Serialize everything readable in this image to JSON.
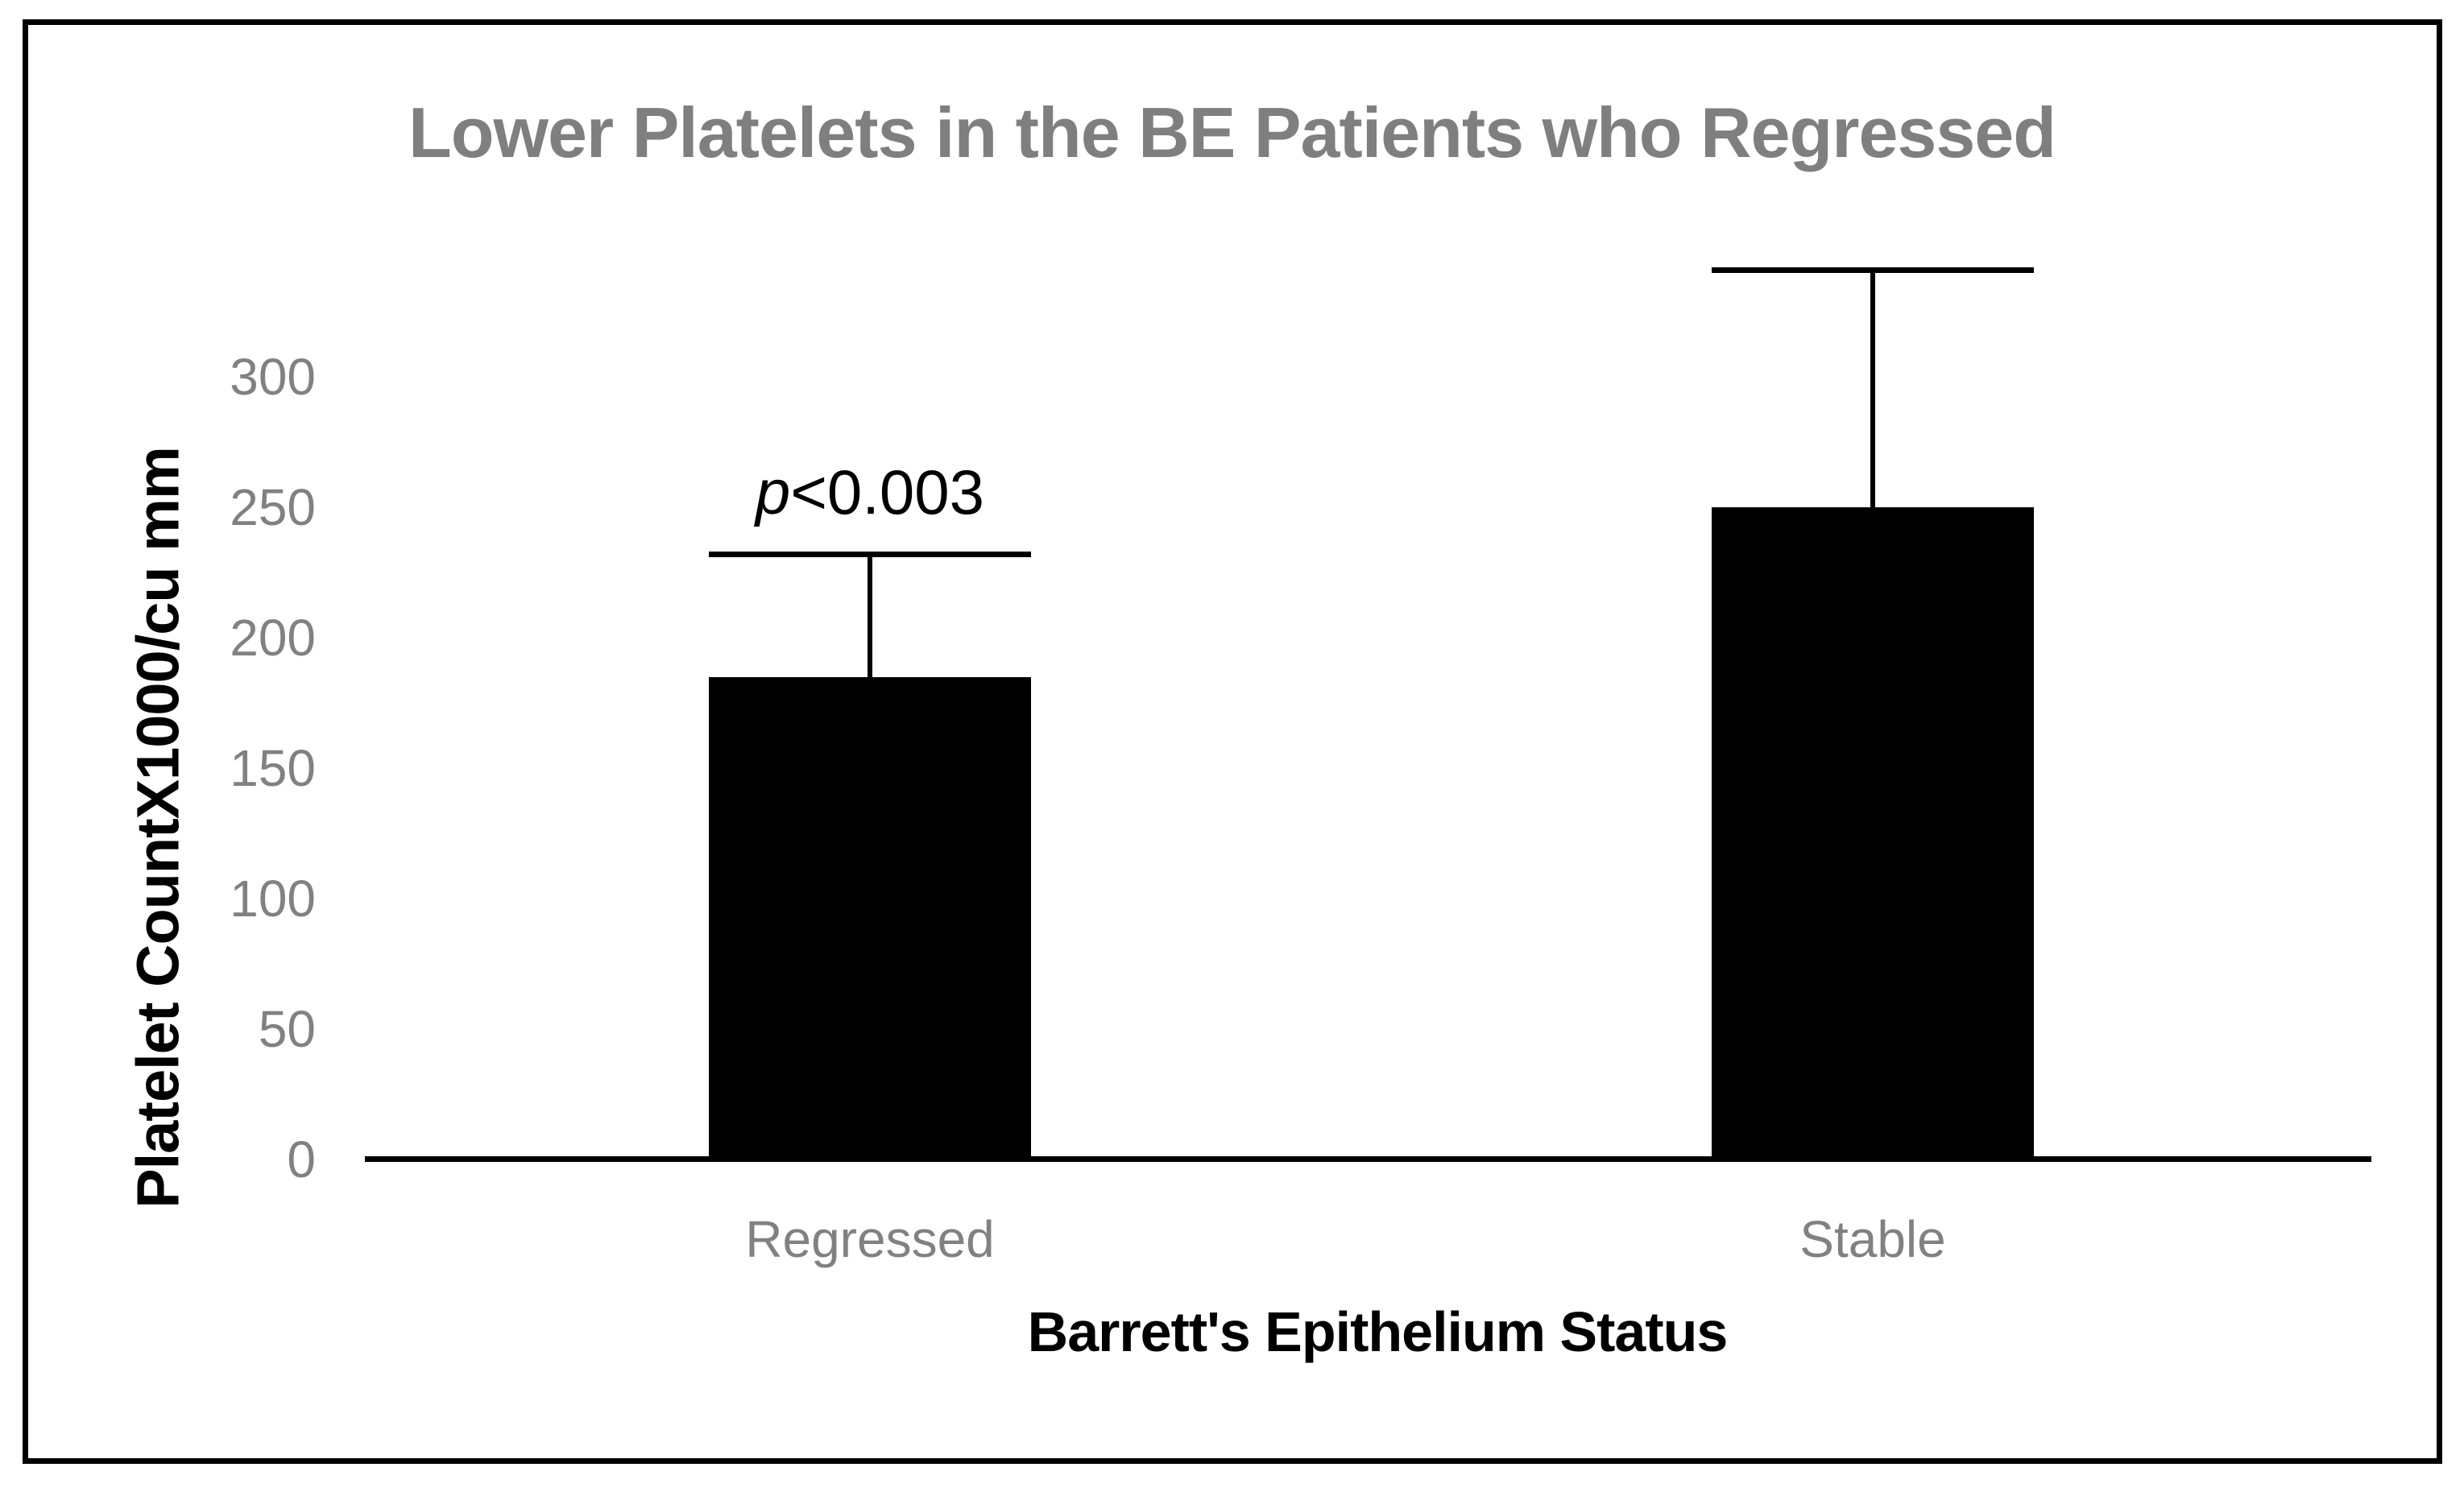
{
  "colors": {
    "bar": "#000000",
    "axis": "#000000",
    "gray_text": "#7f7f7f",
    "background": "#ffffff"
  },
  "chart_data": {
    "type": "bar",
    "title": "Lower Platelets in the BE Patients who Regressed",
    "xlabel": "Barrett's Epithelium Status",
    "ylabel": "Platelet CountX1000/cu mm",
    "categories": [
      "Regressed",
      "Stable"
    ],
    "values": [
      185,
      250
    ],
    "error_bars": {
      "direction": "upper",
      "upper_values": [
        232,
        341
      ]
    },
    "yticks": [
      0,
      50,
      100,
      150,
      200,
      250,
      300
    ],
    "ylim": [
      0,
      345
    ],
    "grid": false,
    "legend": "none",
    "bar_color": "#000000",
    "annotation": {
      "text": "p<0.003",
      "italic_prefix": "p",
      "rest": "<0.003",
      "target_category": "Regressed"
    }
  }
}
